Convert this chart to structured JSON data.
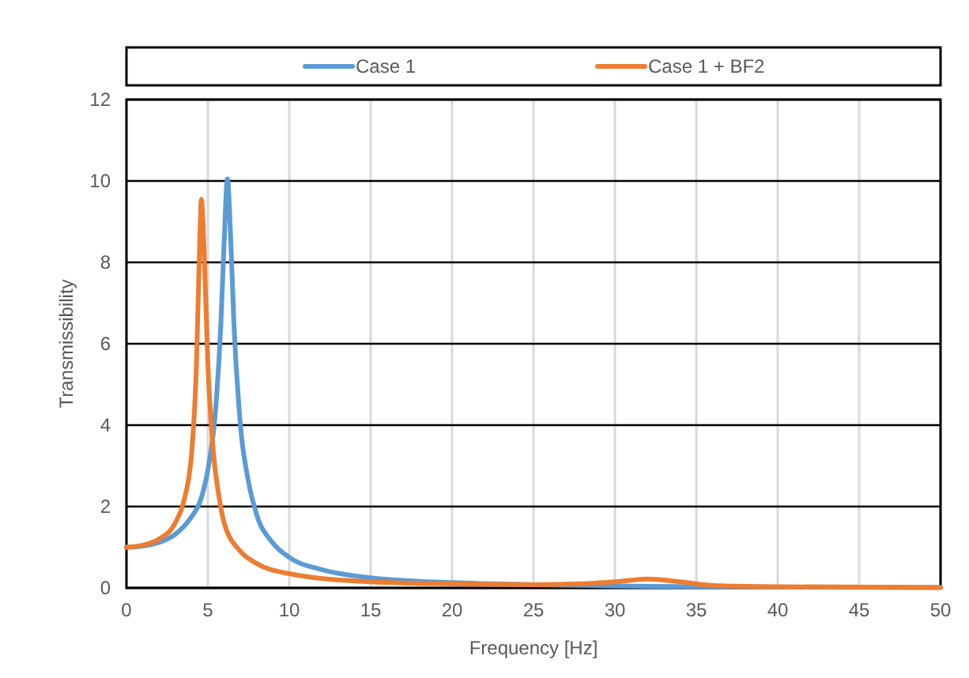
{
  "chart_data": {
    "type": "line",
    "xlabel": "Frequency [Hz]",
    "ylabel": "Transmissibility",
    "xlim": [
      0,
      50
    ],
    "xticks": [
      0,
      5,
      10,
      15,
      20,
      25,
      30,
      35,
      40,
      45,
      50
    ],
    "ylim": [
      0,
      12
    ],
    "yticks": [
      0,
      2,
      4,
      6,
      8,
      10,
      12
    ],
    "grid": true,
    "legend": "top",
    "series": [
      {
        "name": "Case 1",
        "color": "#5b9bd5",
        "x": [
          0,
          1,
          2,
          3,
          4,
          4.5,
          5,
          5.5,
          5.8,
          6.0,
          6.2,
          6.4,
          6.6,
          7,
          7.5,
          8,
          9,
          10,
          12,
          15,
          20,
          25,
          30,
          35,
          40,
          50
        ],
        "values": [
          1.0,
          1.03,
          1.12,
          1.32,
          1.75,
          2.1,
          2.9,
          4.5,
          6.5,
          8.5,
          10.05,
          8.6,
          6.5,
          4.0,
          2.6,
          1.8,
          1.1,
          0.75,
          0.45,
          0.25,
          0.13,
          0.08,
          0.05,
          0.03,
          0.02,
          0.01
        ]
      },
      {
        "name": "Case 1 + BF2",
        "color": "#ed7d31",
        "x": [
          0,
          1,
          2,
          3,
          3.5,
          4,
          4.3,
          4.5,
          4.6,
          4.75,
          5.0,
          5.3,
          5.7,
          6,
          7,
          8,
          10,
          15,
          20,
          25,
          28,
          30,
          32,
          34,
          36,
          40,
          50
        ],
        "values": [
          1.0,
          1.05,
          1.2,
          1.6,
          2.1,
          3.3,
          5.5,
          8.5,
          9.55,
          8.5,
          5.5,
          3.5,
          2.2,
          1.6,
          0.9,
          0.6,
          0.35,
          0.15,
          0.1,
          0.08,
          0.1,
          0.15,
          0.22,
          0.15,
          0.06,
          0.03,
          0.01
        ]
      }
    ]
  }
}
